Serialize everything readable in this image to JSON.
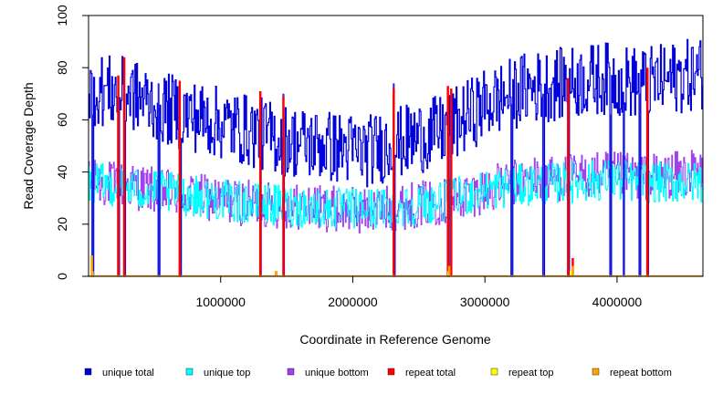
{
  "chart_data": {
    "type": "line",
    "xlabel": "Coordinate in Reference Genome",
    "ylabel": "Read Coverage Depth",
    "xlim": [
      0,
      4650000
    ],
    "ylim": [
      0,
      100
    ],
    "x_ticks": [
      1000000,
      2000000,
      3000000,
      4000000
    ],
    "x_tick_labels": [
      "1000000",
      "2000000",
      "3000000",
      "4000000"
    ],
    "y_ticks": [
      0,
      20,
      40,
      60,
      80,
      100
    ],
    "y_tick_labels": [
      "0",
      "20",
      "40",
      "60",
      "80",
      "100"
    ],
    "legend_position": "bottom",
    "series": [
      {
        "name": "unique total",
        "color": "#0000dd",
        "style": "step",
        "x": [
          0,
          300000,
          600000,
          900000,
          1200000,
          1500000,
          1800000,
          2100000,
          2400000,
          2700000,
          3000000,
          3300000,
          3600000,
          3900000,
          4200000,
          4650000
        ],
        "values": [
          72,
          70,
          64,
          60,
          56,
          52,
          50,
          48,
          52,
          56,
          66,
          72,
          74,
          76,
          74,
          78
        ]
      },
      {
        "name": "unique top",
        "color": "#00ffff",
        "style": "step",
        "x": [
          0,
          300000,
          600000,
          900000,
          1200000,
          1500000,
          1800000,
          2100000,
          2400000,
          2700000,
          3000000,
          3300000,
          3600000,
          3900000,
          4200000,
          4650000
        ],
        "values": [
          36,
          34,
          32,
          30,
          28,
          27,
          26,
          26,
          27,
          29,
          33,
          35,
          36,
          37,
          36,
          36
        ]
      },
      {
        "name": "unique bottom",
        "color": "#a040ee",
        "style": "step",
        "x": [
          0,
          300000,
          600000,
          900000,
          1200000,
          1500000,
          1800000,
          2100000,
          2400000,
          2700000,
          3000000,
          3300000,
          3600000,
          3900000,
          4200000,
          4650000
        ],
        "values": [
          36,
          35,
          32,
          30,
          28,
          27,
          26,
          25,
          27,
          29,
          33,
          37,
          38,
          39,
          38,
          40
        ]
      },
      {
        "name": "repeat total",
        "color": "#ff0000",
        "style": "spikes",
        "x": [
          225000,
          270000,
          690000,
          1300000,
          1420000,
          1475000,
          2310000,
          2720000,
          2745000,
          3630000,
          3665000,
          4230000
        ],
        "values": [
          77,
          84,
          75,
          71,
          2,
          69,
          72,
          73,
          72,
          76,
          7,
          80
        ]
      },
      {
        "name": "repeat top",
        "color": "#ffff00",
        "style": "spikes",
        "x": [
          30000,
          2725000,
          3650000
        ],
        "values": [
          2,
          2,
          2
        ]
      },
      {
        "name": "repeat bottom",
        "color": "#ffa500",
        "style": "spikes",
        "x": [
          25000,
          1420000,
          2730000,
          3665000
        ],
        "values": [
          8,
          2,
          4,
          4
        ]
      }
    ],
    "dropouts_x": [
      30000,
      225000,
      270000,
      530000,
      690000,
      1300000,
      1475000,
      2310000,
      2720000,
      3200000,
      3440000,
      3630000,
      3950000,
      4050000,
      4170000,
      4230000
    ]
  }
}
